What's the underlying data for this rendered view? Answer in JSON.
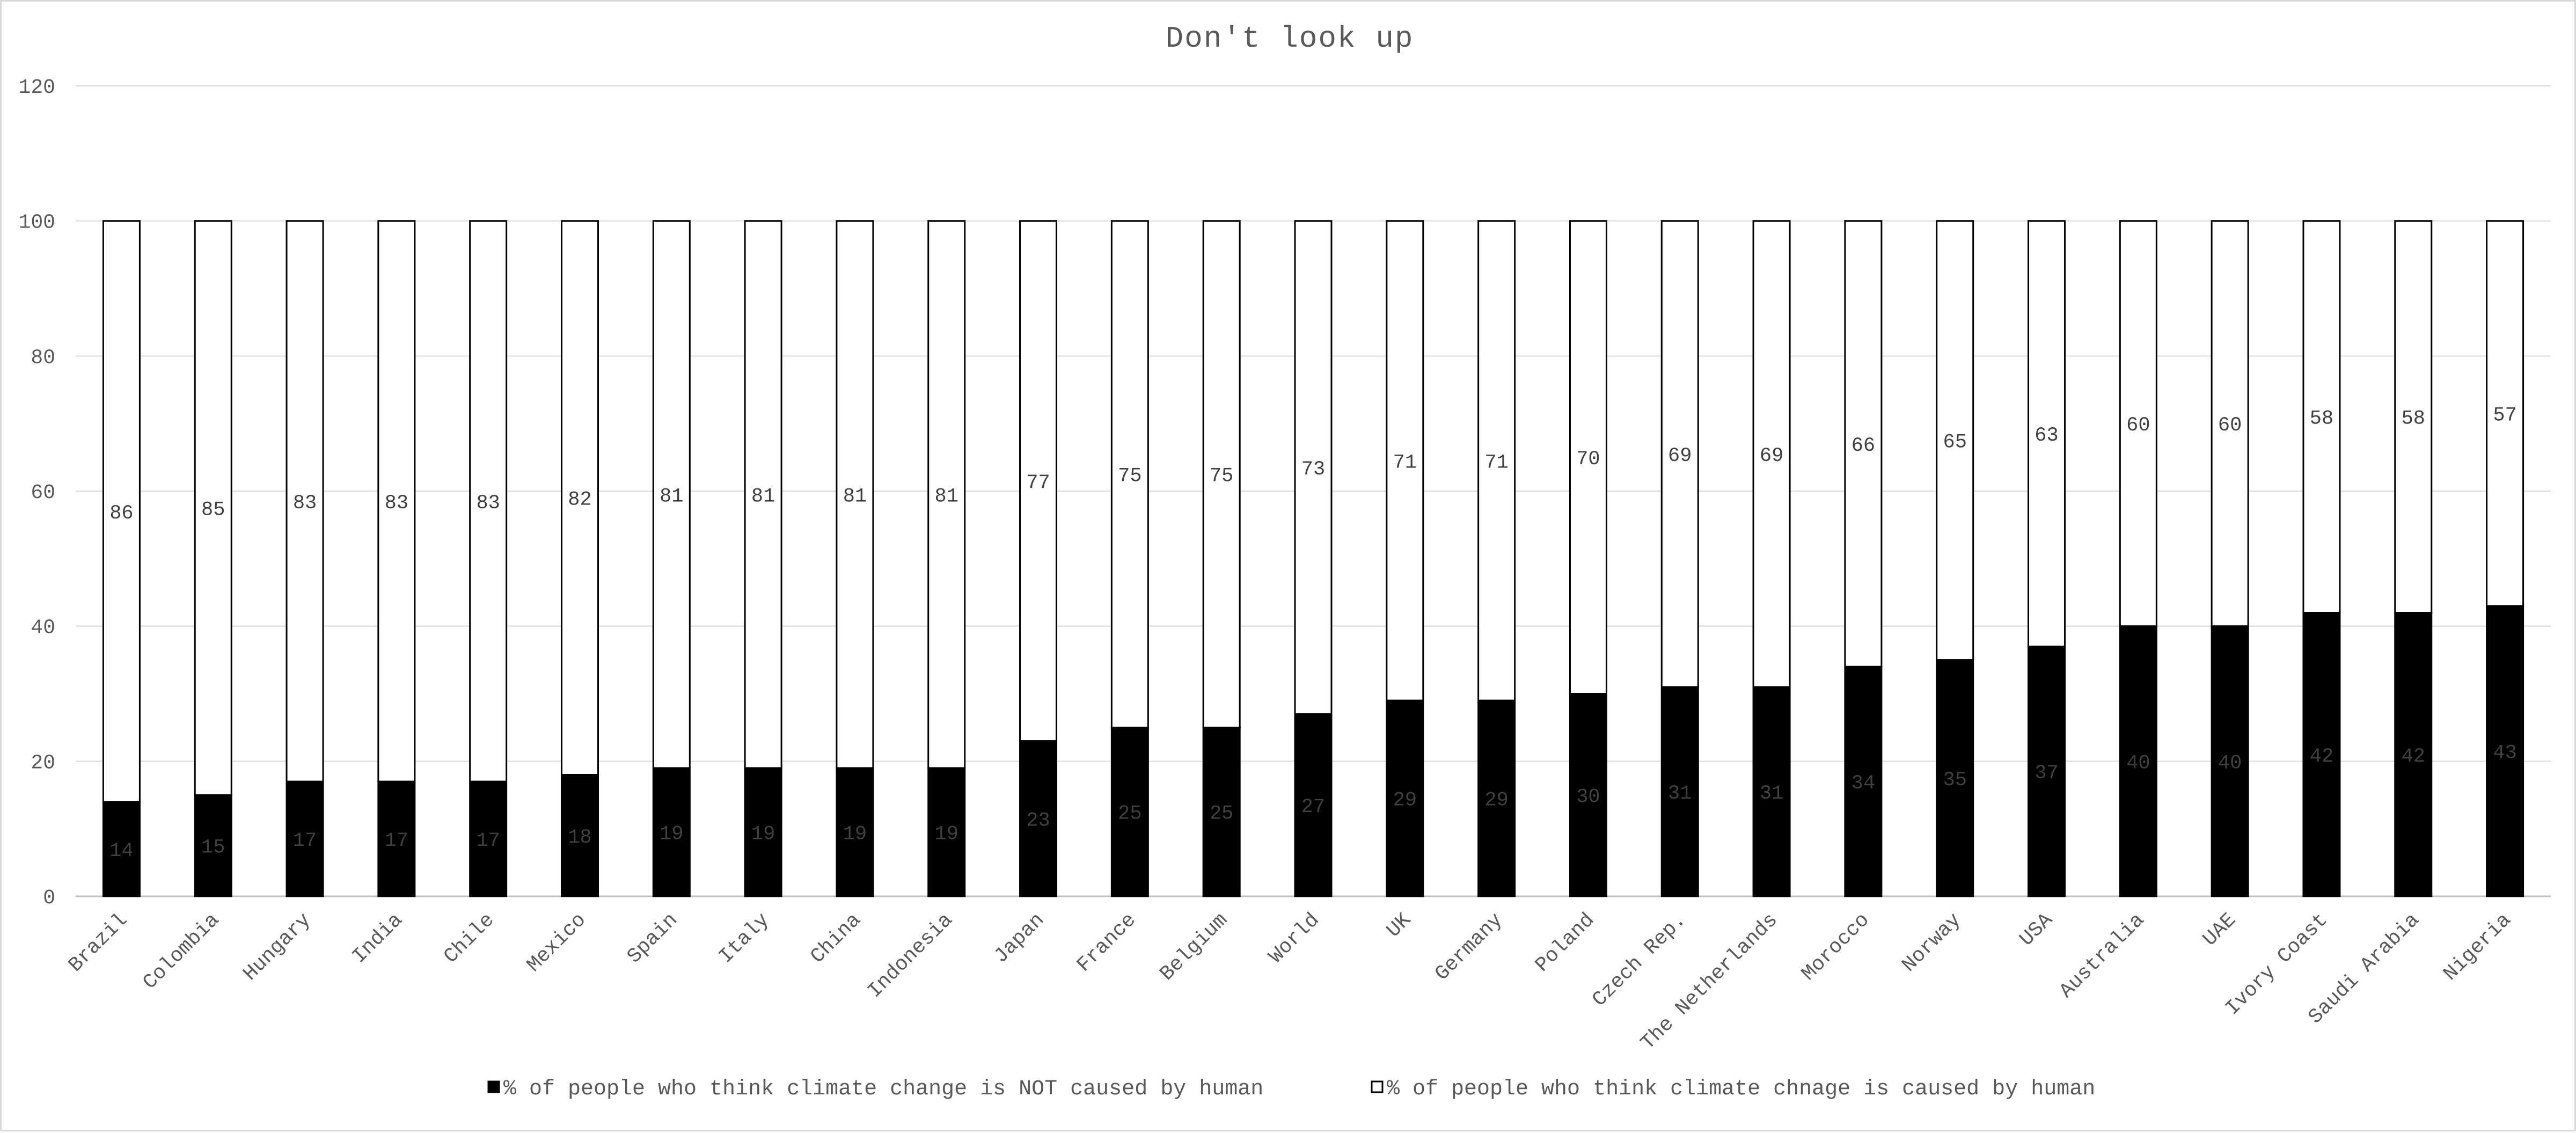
{
  "chart_data": {
    "type": "bar",
    "stacked": true,
    "title": "Don't look up",
    "xlabel": "",
    "ylabel": "",
    "ylim": [
      0,
      120
    ],
    "yticks": [
      0,
      20,
      40,
      60,
      80,
      100,
      120
    ],
    "grid": true,
    "legend_position": "bottom",
    "categories": [
      "Brazil",
      "Colombia",
      "Hungary",
      "India",
      "Chile",
      "Mexico",
      "Spain",
      "Italy",
      "China",
      "Indonesia",
      "Japan",
      "France",
      "Belgium",
      "World",
      "UK",
      "Germany",
      "Poland",
      "Czech Rep.",
      "The Netherlands",
      "Morocco",
      "Norway",
      "USA",
      "Australia",
      "UAE",
      "Ivory Coast",
      "Saudi Arabia",
      "Nigeria"
    ],
    "series": [
      {
        "name": "% of people who think climate change is NOT caused by human",
        "color": "#000000",
        "values": [
          14,
          15,
          17,
          17,
          17,
          18,
          19,
          19,
          19,
          19,
          23,
          25,
          25,
          27,
          29,
          29,
          30,
          31,
          31,
          34,
          35,
          37,
          40,
          40,
          42,
          42,
          43
        ]
      },
      {
        "name": "% of people who think climate chnage is caused by human",
        "color": "#ffffff",
        "values": [
          86,
          85,
          83,
          83,
          83,
          82,
          81,
          81,
          81,
          81,
          77,
          75,
          75,
          73,
          71,
          71,
          70,
          69,
          69,
          66,
          65,
          63,
          60,
          60,
          58,
          58,
          57
        ]
      }
    ]
  }
}
